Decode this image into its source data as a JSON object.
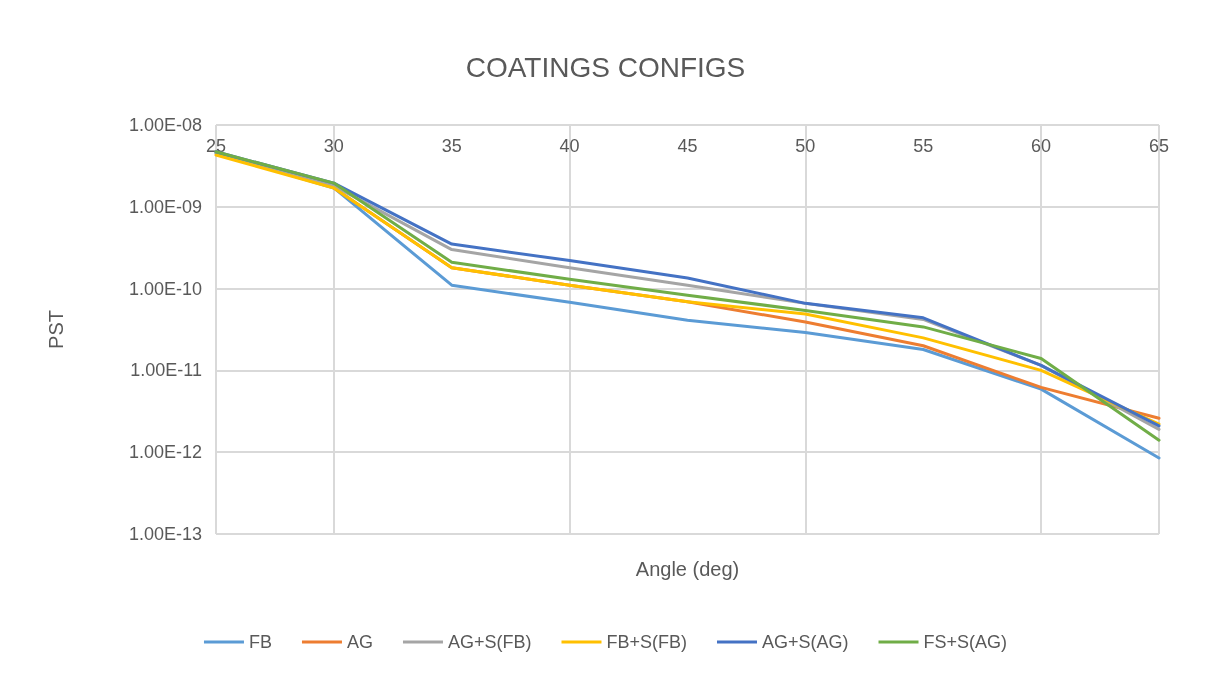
{
  "chart_data": {
    "type": "line",
    "title": "COATINGS CONFIGS",
    "xlabel": "Angle (deg)",
    "ylabel": "PST",
    "x": [
      25,
      30,
      35,
      40,
      45,
      50,
      55,
      60,
      65
    ],
    "series": [
      {
        "name": "FB",
        "color": "#5b9bd5",
        "values": [
          4.5e-09,
          1.7e-09,
          1.1e-10,
          6.8e-11,
          4.1e-11,
          2.9e-11,
          1.8e-11,
          5.9e-12,
          8.5e-13
        ]
      },
      {
        "name": "AG",
        "color": "#ed7d31",
        "values": [
          null,
          1.7e-09,
          1.8e-10,
          1.1e-10,
          6.9e-11,
          3.9e-11,
          2e-11,
          6.2e-12,
          2.6e-12
        ]
      },
      {
        "name": "AG+S(FB)",
        "color": "#a5a5a5",
        "values": [
          4.6e-09,
          1.8e-09,
          3e-10,
          1.8e-10,
          1.1e-10,
          6.6e-11,
          4.2e-11,
          1.15e-11,
          1.9e-12
        ]
      },
      {
        "name": "FB+S(FB)",
        "color": "#ffc000",
        "values": [
          4.3e-09,
          1.7e-09,
          1.8e-10,
          1.1e-10,
          6.9e-11,
          4.9e-11,
          2.5e-11,
          1e-11,
          2.2e-12
        ]
      },
      {
        "name": "AG+S(AG)",
        "color": "#4472c4",
        "values": [
          4.7e-09,
          1.95e-09,
          3.5e-10,
          2.2e-10,
          1.35e-10,
          6.6e-11,
          4.4e-11,
          1.15e-11,
          2.1e-12
        ]
      },
      {
        "name": "FS+S(AG)",
        "color": "#70ad47",
        "values": [
          4.7e-09,
          1.95e-09,
          2.1e-10,
          1.3e-10,
          8.3e-11,
          5.4e-11,
          3.4e-11,
          1.4e-11,
          1.4e-12
        ]
      }
    ],
    "xlim": [
      25,
      65
    ],
    "xticks": [
      25,
      30,
      35,
      40,
      45,
      50,
      55,
      60,
      65
    ],
    "ylim": [
      1e-13,
      1e-08
    ],
    "yticks": [
      {
        "value": 1e-13,
        "label": "1.00E-13"
      },
      {
        "value": 1e-12,
        "label": "1.00E-12"
      },
      {
        "value": 1e-11,
        "label": "1.00E-11"
      },
      {
        "value": 1e-10,
        "label": "1.00E-10"
      },
      {
        "value": 1e-09,
        "label": "1.00E-09"
      },
      {
        "value": 1e-08,
        "label": "1.00E-08"
      }
    ],
    "log": true,
    "grid": true,
    "legend": "bottom",
    "marker": "none",
    "line_style": "solid"
  }
}
